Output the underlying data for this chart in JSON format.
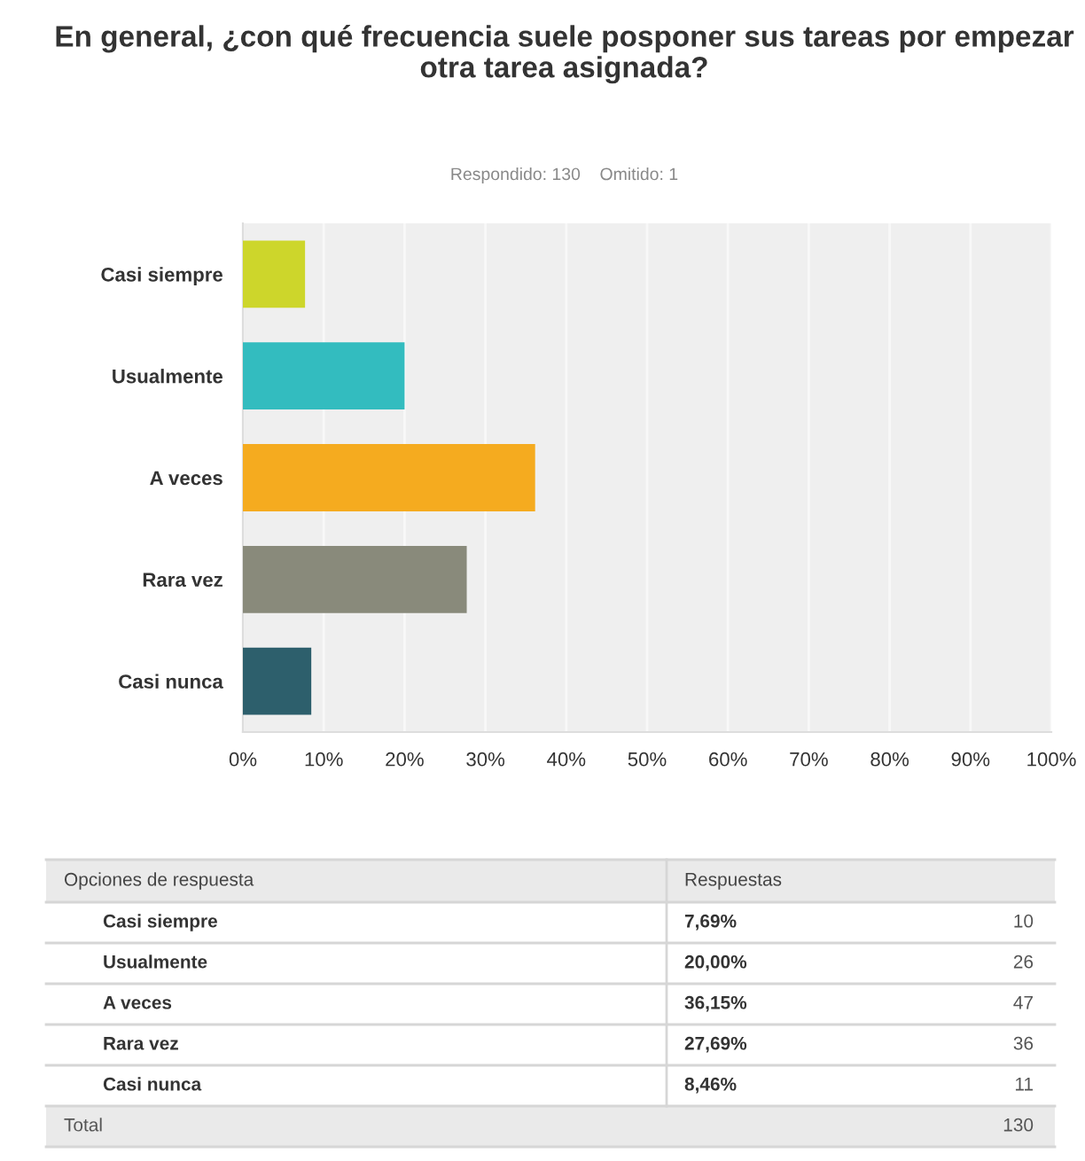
{
  "chart_data": {
    "type": "bar",
    "orientation": "horizontal",
    "title": "En general, ¿con qué frecuencia suele posponer sus tareas por empezar otra tarea asignada?",
    "subtitle": "Respondido: 130    Omitido: 1",
    "categories": [
      "Casi siempre",
      "Usualmente",
      "A veces",
      "Rara vez",
      "Casi nunca"
    ],
    "values": [
      7.69,
      20.0,
      36.15,
      27.69,
      8.46
    ],
    "colors": [
      "#cdd62b",
      "#33bcbf",
      "#f5ab1f",
      "#898a7b",
      "#2d5f6c"
    ],
    "xlim": [
      0,
      100
    ],
    "xticks": [
      {
        "value": 0,
        "label": "0%"
      },
      {
        "value": 10,
        "label": "10%"
      },
      {
        "value": 20,
        "label": "20%"
      },
      {
        "value": 30,
        "label": "30%"
      },
      {
        "value": 40,
        "label": "40%"
      },
      {
        "value": 50,
        "label": "50%"
      },
      {
        "value": 60,
        "label": "60%"
      },
      {
        "value": 70,
        "label": "70%"
      },
      {
        "value": 80,
        "label": "80%"
      },
      {
        "value": 90,
        "label": "90%"
      },
      {
        "value": 100,
        "label": "100%"
      }
    ],
    "grid": "x",
    "annotations": [
      "Opciones de respuesta",
      "Respuestas",
      "7,69%",
      "10",
      "20,00%",
      "26",
      "36,15%",
      "47",
      "27,69%",
      "36",
      "8,46%",
      "11",
      "Total",
      "130"
    ]
  }
}
